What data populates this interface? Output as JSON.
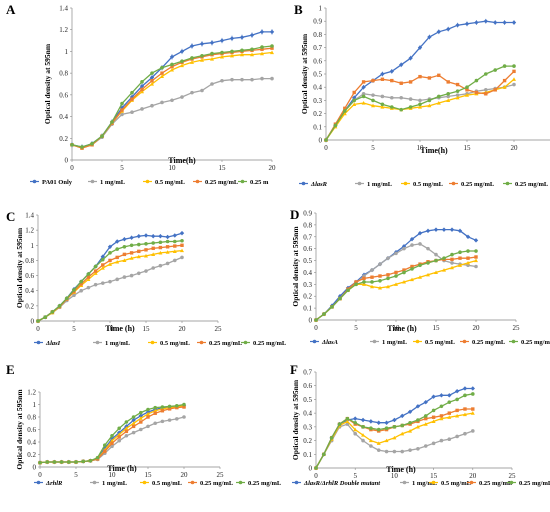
{
  "colors": {
    "blue": "#4472C4",
    "gray": "#A5A5A5",
    "yellow": "#FFC000",
    "orange": "#ED7D31",
    "green": "#70AD47"
  },
  "chart_data": [
    {
      "panel": "A",
      "type": "line",
      "xlabel": "Time(h)",
      "ylabel": "Optical density at 595nm",
      "xlim": [
        0,
        20
      ],
      "ylim": [
        0,
        1.4
      ],
      "xticks": [
        "0",
        "5",
        "10",
        "15",
        "20"
      ],
      "yticks": [
        "0",
        "0.2",
        "0.4",
        "0.6",
        "0.8",
        "1",
        "1.2",
        "1.4"
      ],
      "x": [
        0,
        1,
        2,
        3,
        4,
        5,
        6,
        7,
        8,
        9,
        10,
        11,
        12,
        13,
        14,
        15,
        16,
        17,
        18,
        19,
        20
      ],
      "series": [
        {
          "name": "PA01 Only",
          "color": "blue",
          "values": [
            0.14,
            0.12,
            0.15,
            0.22,
            0.35,
            0.48,
            0.58,
            0.68,
            0.76,
            0.85,
            0.95,
            1.0,
            1.05,
            1.07,
            1.08,
            1.1,
            1.12,
            1.13,
            1.15,
            1.18,
            1.18
          ]
        },
        {
          "name": "1 mg/mL",
          "color": "gray",
          "values": [
            0.14,
            0.11,
            0.14,
            0.21,
            0.33,
            0.42,
            0.44,
            0.47,
            0.5,
            0.53,
            0.55,
            0.58,
            0.62,
            0.64,
            0.7,
            0.73,
            0.74,
            0.74,
            0.74,
            0.75,
            0.75
          ]
        },
        {
          "name": "0.5 mg/mL",
          "color": "yellow",
          "values": [
            0.14,
            0.11,
            0.14,
            0.22,
            0.34,
            0.45,
            0.55,
            0.63,
            0.7,
            0.77,
            0.83,
            0.87,
            0.9,
            0.92,
            0.93,
            0.95,
            0.96,
            0.97,
            0.97,
            0.98,
            0.99
          ]
        },
        {
          "name": "0.25 mg/mL",
          "color": "orange",
          "values": [
            0.14,
            0.11,
            0.14,
            0.22,
            0.34,
            0.46,
            0.56,
            0.65,
            0.73,
            0.8,
            0.86,
            0.9,
            0.93,
            0.95,
            0.97,
            0.98,
            0.99,
            1.0,
            1.01,
            1.02,
            1.03
          ]
        },
        {
          "name": "0.25 m",
          "color": "green",
          "values": [
            0.14,
            0.12,
            0.15,
            0.22,
            0.35,
            0.52,
            0.62,
            0.72,
            0.8,
            0.85,
            0.88,
            0.91,
            0.94,
            0.96,
            0.98,
            0.99,
            1.0,
            1.01,
            1.02,
            1.04,
            1.05
          ]
        }
      ]
    },
    {
      "panel": "B",
      "type": "line",
      "xlabel": "Time(h)",
      "ylabel": "Optical density at 595nm",
      "xlim": [
        0,
        25
      ],
      "ylim": [
        0,
        1
      ],
      "xticks": [
        "0",
        "5",
        "10",
        "15",
        "20",
        "25"
      ],
      "yticks": [
        "0",
        "0.1",
        "0.2",
        "0.3",
        "0.4",
        "0.5",
        "0.6",
        "0.7",
        "0.8",
        "0.9",
        "1"
      ],
      "x": [
        0,
        1,
        2,
        3,
        4,
        5,
        6,
        7,
        8,
        9,
        10,
        11,
        12,
        13,
        14,
        15,
        16,
        17,
        18,
        19,
        20
      ],
      "series": [
        {
          "name": "ΔlasR",
          "color": "blue",
          "values": [
            0.0,
            0.11,
            0.22,
            0.32,
            0.4,
            0.45,
            0.5,
            0.52,
            0.57,
            0.62,
            0.7,
            0.78,
            0.82,
            0.84,
            0.87,
            0.88,
            0.89,
            0.9,
            0.89,
            0.89,
            0.89
          ]
        },
        {
          "name": "1 mg/mL",
          "color": "gray",
          "values": [
            0.0,
            0.11,
            0.22,
            0.3,
            0.35,
            0.34,
            0.33,
            0.32,
            0.32,
            0.31,
            0.3,
            0.31,
            0.32,
            0.33,
            0.34,
            0.35,
            0.37,
            0.38,
            0.39,
            0.4,
            0.42
          ]
        },
        {
          "name": "0.5 mg/mL",
          "color": "yellow",
          "values": [
            0.0,
            0.1,
            0.2,
            0.27,
            0.28,
            0.26,
            0.25,
            0.24,
            0.23,
            0.24,
            0.25,
            0.26,
            0.28,
            0.3,
            0.32,
            0.34,
            0.35,
            0.36,
            0.38,
            0.4,
            0.46
          ]
        },
        {
          "name": "0.25 mg/mL",
          "color": "orange",
          "values": [
            0.0,
            0.12,
            0.24,
            0.36,
            0.44,
            0.45,
            0.46,
            0.45,
            0.43,
            0.44,
            0.48,
            0.47,
            0.49,
            0.44,
            0.42,
            0.38,
            0.36,
            0.35,
            0.38,
            0.45,
            0.52
          ]
        },
        {
          "name": "0.25 mg/mL",
          "color": "green",
          "values": [
            0.0,
            0.11,
            0.22,
            0.3,
            0.33,
            0.3,
            0.27,
            0.25,
            0.23,
            0.25,
            0.27,
            0.3,
            0.33,
            0.35,
            0.37,
            0.4,
            0.45,
            0.5,
            0.53,
            0.56,
            0.56
          ]
        }
      ]
    },
    {
      "panel": "C",
      "type": "line",
      "xlabel": "Time (h)",
      "ylabel": "Optical density at 595nm",
      "xlim": [
        0,
        25
      ],
      "ylim": [
        0,
        1.4
      ],
      "xticks": [
        "0",
        "5",
        "10",
        "15",
        "20",
        "25"
      ],
      "yticks": [
        "0",
        "0.2",
        "0.4",
        "0.6",
        "0.8",
        "1",
        "1.2",
        "1.4"
      ],
      "x": [
        0,
        1,
        2,
        3,
        4,
        5,
        6,
        7,
        8,
        9,
        10,
        11,
        12,
        13,
        14,
        15,
        16,
        17,
        18,
        19,
        20
      ],
      "series": [
        {
          "name": "ΔlasI",
          "color": "blue",
          "values": [
            0.0,
            0.05,
            0.12,
            0.2,
            0.3,
            0.42,
            0.52,
            0.62,
            0.72,
            0.85,
            0.98,
            1.05,
            1.08,
            1.1,
            1.12,
            1.13,
            1.12,
            1.12,
            1.11,
            1.13,
            1.16
          ]
        },
        {
          "name": "1 mg/mL",
          "color": "gray",
          "values": [
            0.0,
            0.05,
            0.11,
            0.18,
            0.27,
            0.34,
            0.4,
            0.44,
            0.48,
            0.5,
            0.52,
            0.55,
            0.58,
            0.6,
            0.63,
            0.66,
            0.7,
            0.73,
            0.76,
            0.8,
            0.84
          ]
        },
        {
          "name": "0.5 mg/mL",
          "color": "yellow",
          "values": [
            0.0,
            0.05,
            0.11,
            0.19,
            0.29,
            0.38,
            0.47,
            0.55,
            0.63,
            0.7,
            0.75,
            0.78,
            0.8,
            0.83,
            0.85,
            0.86,
            0.88,
            0.9,
            0.91,
            0.92,
            0.93
          ]
        },
        {
          "name": "0.25 mg/mL",
          "color": "orange",
          "values": [
            0.0,
            0.05,
            0.12,
            0.19,
            0.29,
            0.39,
            0.49,
            0.58,
            0.66,
            0.74,
            0.8,
            0.84,
            0.88,
            0.9,
            0.92,
            0.94,
            0.96,
            0.97,
            0.98,
            0.99,
            1.0
          ]
        },
        {
          "name": "0.25 mg/mL",
          "color": "green",
          "values": [
            0.0,
            0.05,
            0.12,
            0.2,
            0.3,
            0.41,
            0.52,
            0.62,
            0.72,
            0.81,
            0.9,
            0.95,
            0.98,
            1.0,
            1.01,
            1.02,
            1.03,
            1.04,
            1.05,
            1.05,
            1.06
          ]
        }
      ]
    },
    {
      "panel": "D",
      "type": "line",
      "xlabel": "Time (h)",
      "ylabel": "Optical density at 595nm",
      "xlim": [
        0,
        25
      ],
      "ylim": [
        0,
        0.9
      ],
      "xticks": [
        "0",
        "5",
        "10",
        "15",
        "20",
        "25"
      ],
      "yticks": [
        "0",
        "0.1",
        "0.2",
        "0.3",
        "0.4",
        "0.5",
        "0.6",
        "0.7",
        "0.8",
        "0.9"
      ],
      "x": [
        0,
        1,
        2,
        3,
        4,
        5,
        6,
        7,
        8,
        9,
        10,
        11,
        12,
        13,
        14,
        15,
        16,
        17,
        18,
        19,
        20
      ],
      "series": [
        {
          "name": "ΔlasA",
          "color": "blue",
          "values": [
            0.0,
            0.05,
            0.12,
            0.2,
            0.27,
            0.32,
            0.38,
            0.42,
            0.47,
            0.52,
            0.57,
            0.62,
            0.68,
            0.73,
            0.75,
            0.76,
            0.76,
            0.76,
            0.75,
            0.7,
            0.67
          ]
        },
        {
          "name": "1 mg/mL",
          "color": "gray",
          "values": [
            0.0,
            0.05,
            0.11,
            0.18,
            0.25,
            0.31,
            0.37,
            0.42,
            0.47,
            0.52,
            0.56,
            0.6,
            0.63,
            0.64,
            0.6,
            0.55,
            0.5,
            0.48,
            0.47,
            0.46,
            0.45
          ]
        },
        {
          "name": "0.5 mg/mL",
          "color": "yellow",
          "values": [
            0.0,
            0.05,
            0.11,
            0.18,
            0.25,
            0.3,
            0.3,
            0.28,
            0.27,
            0.28,
            0.3,
            0.32,
            0.34,
            0.36,
            0.38,
            0.4,
            0.42,
            0.44,
            0.46,
            0.48,
            0.5
          ]
        },
        {
          "name": "0.25 mg/mL",
          "color": "orange",
          "values": [
            0.0,
            0.05,
            0.11,
            0.18,
            0.26,
            0.32,
            0.35,
            0.36,
            0.37,
            0.38,
            0.4,
            0.42,
            0.45,
            0.47,
            0.49,
            0.5,
            0.51,
            0.51,
            0.52,
            0.52,
            0.53
          ]
        },
        {
          "name": "0.25 mg/mL",
          "color": "green",
          "values": [
            0.0,
            0.05,
            0.11,
            0.18,
            0.25,
            0.3,
            0.32,
            0.32,
            0.33,
            0.35,
            0.37,
            0.4,
            0.43,
            0.46,
            0.48,
            0.5,
            0.52,
            0.55,
            0.57,
            0.58,
            0.58
          ]
        }
      ]
    },
    {
      "panel": "E",
      "type": "line",
      "xlabel": "Time (h)",
      "ylabel": "Optical density at 595nm",
      "xlim": [
        0,
        25
      ],
      "ylim": [
        0,
        1.2
      ],
      "xticks": [
        "0",
        "5",
        "10",
        "15",
        "20",
        "25"
      ],
      "yticks": [
        "0",
        "0.2",
        "0.4",
        "0.6",
        "0.8",
        "1",
        "1.2"
      ],
      "x": [
        0,
        1,
        2,
        3,
        4,
        5,
        6,
        7,
        8,
        9,
        10,
        11,
        12,
        13,
        14,
        15,
        16,
        17,
        18,
        19,
        20
      ],
      "series": [
        {
          "name": "ΔrhlR",
          "color": "blue",
          "values": [
            0.07,
            0.08,
            0.08,
            0.08,
            0.08,
            0.08,
            0.09,
            0.1,
            0.14,
            0.3,
            0.45,
            0.55,
            0.65,
            0.75,
            0.82,
            0.88,
            0.92,
            0.95,
            0.96,
            0.97,
            0.98
          ]
        },
        {
          "name": "1 mg/mL",
          "color": "gray",
          "values": [
            0.07,
            0.08,
            0.08,
            0.08,
            0.08,
            0.08,
            0.09,
            0.1,
            0.12,
            0.22,
            0.33,
            0.42,
            0.5,
            0.55,
            0.6,
            0.65,
            0.7,
            0.73,
            0.75,
            0.77,
            0.8
          ]
        },
        {
          "name": "0.5 mg/mL",
          "color": "yellow",
          "values": [
            0.07,
            0.08,
            0.08,
            0.08,
            0.08,
            0.08,
            0.09,
            0.1,
            0.13,
            0.27,
            0.42,
            0.52,
            0.62,
            0.7,
            0.78,
            0.85,
            0.9,
            0.93,
            0.95,
            0.96,
            0.98
          ]
        },
        {
          "name": "0.25 mg/mL",
          "color": "orange",
          "values": [
            0.07,
            0.08,
            0.08,
            0.08,
            0.08,
            0.08,
            0.09,
            0.1,
            0.13,
            0.25,
            0.38,
            0.48,
            0.57,
            0.65,
            0.72,
            0.8,
            0.86,
            0.9,
            0.93,
            0.95,
            0.96
          ]
        },
        {
          "name": "0.25 mg/mL",
          "color": "green",
          "values": [
            0.07,
            0.08,
            0.08,
            0.08,
            0.08,
            0.08,
            0.09,
            0.1,
            0.15,
            0.35,
            0.5,
            0.62,
            0.72,
            0.8,
            0.87,
            0.92,
            0.95,
            0.96,
            0.97,
            0.98,
            1.0
          ]
        }
      ]
    },
    {
      "panel": "F",
      "type": "line",
      "xlabel": "Time (h)",
      "ylabel": "Optical density at 595nm",
      "xlim": [
        0,
        25
      ],
      "ylim": [
        0,
        0.7
      ],
      "xticks": [
        "0",
        "5",
        "10",
        "15",
        "20",
        "25"
      ],
      "yticks": [
        "0",
        "0.1",
        "0.2",
        "0.3",
        "0.4",
        "0.5",
        "0.6",
        "0.7"
      ],
      "x": [
        0,
        1,
        2,
        3,
        4,
        5,
        6,
        7,
        8,
        9,
        10,
        11,
        12,
        13,
        14,
        15,
        16,
        17,
        18,
        19,
        20
      ],
      "series": [
        {
          "name": "ΔlasR/ΔrhlR Double mutant",
          "color": "blue",
          "values": [
            0.0,
            0.1,
            0.22,
            0.32,
            0.35,
            0.36,
            0.35,
            0.34,
            0.33,
            0.33,
            0.35,
            0.38,
            0.41,
            0.45,
            0.48,
            0.52,
            0.53,
            0.53,
            0.56,
            0.58,
            0.58
          ]
        },
        {
          "name": "1 mg/mL",
          "color": "gray",
          "values": [
            0.0,
            0.1,
            0.2,
            0.3,
            0.32,
            0.25,
            0.2,
            0.16,
            0.13,
            0.12,
            0.12,
            0.12,
            0.13,
            0.14,
            0.16,
            0.18,
            0.2,
            0.21,
            0.23,
            0.25,
            0.27
          ]
        },
        {
          "name": "0.5 mg/mL",
          "color": "yellow",
          "values": [
            0.0,
            0.1,
            0.21,
            0.31,
            0.34,
            0.28,
            0.24,
            0.2,
            0.18,
            0.2,
            0.22,
            0.25,
            0.27,
            0.3,
            0.32,
            0.34,
            0.36,
            0.37,
            0.38,
            0.39,
            0.4
          ]
        },
        {
          "name": "0.25 mg/mL",
          "color": "orange",
          "values": [
            0.0,
            0.1,
            0.22,
            0.32,
            0.36,
            0.32,
            0.3,
            0.28,
            0.27,
            0.28,
            0.3,
            0.31,
            0.32,
            0.34,
            0.36,
            0.37,
            0.38,
            0.4,
            0.42,
            0.43,
            0.43
          ]
        },
        {
          "name": "0.25 mg/mL",
          "color": "green",
          "values": [
            0.0,
            0.1,
            0.22,
            0.32,
            0.36,
            0.33,
            0.3,
            0.29,
            0.28,
            0.29,
            0.3,
            0.31,
            0.33,
            0.35,
            0.38,
            0.42,
            0.45,
            0.48,
            0.5,
            0.53,
            0.54
          ]
        }
      ]
    }
  ]
}
